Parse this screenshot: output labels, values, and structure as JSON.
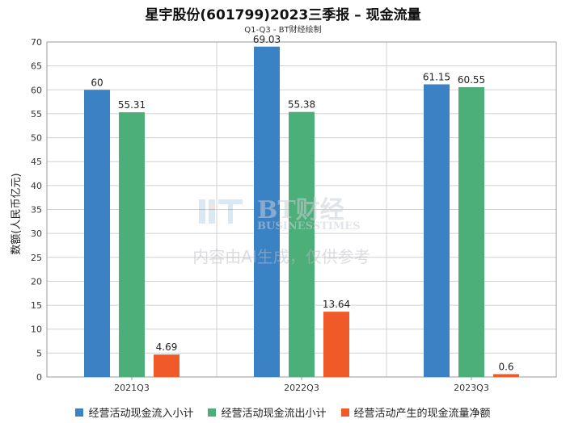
{
  "chart_data": {
    "type": "bar",
    "title": "星宇股份(601799)2023三季报 – 现金流量",
    "subtitle": "Q1-Q3 - BT财经绘制",
    "ylabel": "数额(人民币亿元)",
    "xlabel": "",
    "categories": [
      "2021Q3",
      "2022Q3",
      "2023Q3"
    ],
    "ylim": [
      0,
      70
    ],
    "yticks": [
      0,
      5,
      10,
      15,
      20,
      25,
      30,
      35,
      40,
      45,
      50,
      55,
      60,
      65,
      70
    ],
    "grid": true,
    "legend_position": "bottom",
    "series": [
      {
        "name": "经营活动现金流入小计",
        "color": "#3a82c4",
        "values": [
          60,
          69.03,
          61.15
        ],
        "labels": [
          "60",
          "69.03",
          "61.15"
        ]
      },
      {
        "name": "经营活动现金流出小计",
        "color": "#4cae78",
        "values": [
          55.31,
          55.38,
          60.55
        ],
        "labels": [
          "55.31",
          "55.38",
          "60.55"
        ]
      },
      {
        "name": "经营活动产生的现金流量净额",
        "color": "#f05a28",
        "values": [
          4.69,
          13.64,
          0.6
        ],
        "labels": [
          "4.69",
          "13.64",
          "0.6"
        ]
      }
    ]
  },
  "watermark": {
    "logo_text": "BT财经",
    "logo_sub": "BUSINESSTIMES",
    "notice": "内容由AI生成，仅供参考"
  }
}
